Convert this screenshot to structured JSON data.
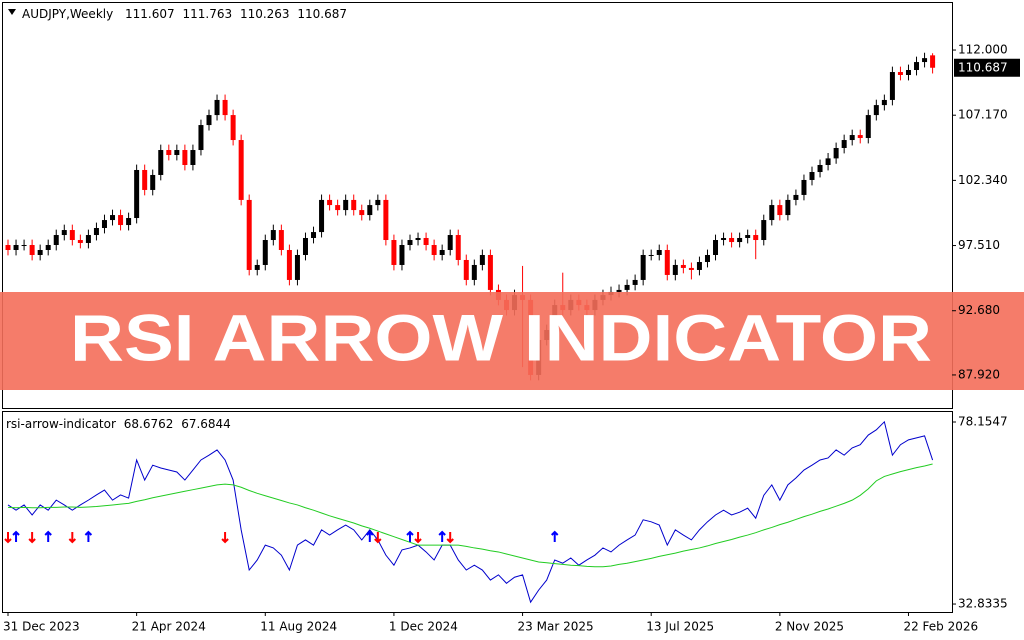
{
  "chart_data": [
    {
      "type": "candlestick",
      "title": "AUDJPY,Weekly",
      "categories": [
        "31 Dec 2023",
        null,
        null,
        null,
        null,
        null,
        null,
        null,
        null,
        null,
        null,
        null,
        null,
        null,
        null,
        null,
        "21 Apr 2024",
        null,
        null,
        null,
        null,
        null,
        null,
        null,
        null,
        null,
        null,
        null,
        null,
        null,
        null,
        null,
        "11 Aug 2024",
        null,
        null,
        null,
        null,
        null,
        null,
        null,
        null,
        null,
        null,
        null,
        null,
        null,
        null,
        null,
        "1 Dec 2024",
        null,
        null,
        null,
        null,
        null,
        null,
        null,
        null,
        null,
        null,
        null,
        null,
        null,
        null,
        null,
        "23 Mar 2025",
        null,
        null,
        null,
        null,
        null,
        null,
        null,
        null,
        null,
        null,
        null,
        null,
        null,
        null,
        null,
        "13 Jul 2025",
        null,
        null,
        null,
        null,
        null,
        null,
        null,
        null,
        null,
        null,
        null,
        null,
        null,
        null,
        null,
        "2 Nov 2025",
        null,
        null,
        null,
        null,
        null,
        null,
        null,
        null,
        null,
        null,
        null,
        null,
        null,
        null,
        null,
        "22 Feb 2026",
        null,
        null,
        null
      ],
      "open": [
        97.55,
        97.18,
        97.55,
        97.55,
        96.81,
        97.18,
        97.55,
        98.29,
        98.66,
        97.92,
        97.7,
        98.29,
        98.81,
        99.4,
        99.77,
        99.03,
        99.55,
        103.11,
        101.63,
        102.74,
        104.59,
        104.22,
        104.59,
        103.48,
        104.59,
        106.44,
        107.18,
        108.3,
        107.18,
        105.33,
        100.89,
        95.7,
        96.07,
        97.92,
        98.66,
        97.18,
        94.96,
        96.81,
        98.07,
        98.51,
        100.89,
        100.51,
        100.14,
        100.89,
        100.14,
        99.77,
        100.51,
        100.89,
        97.92,
        96.07,
        97.55,
        97.92,
        98.07,
        97.55,
        96.81,
        97.18,
        98.29,
        96.44,
        94.96,
        96.07,
        96.81,
        94.22,
        93.48,
        92.73,
        93.84,
        93.48,
        87.92,
        90.51,
        91.25,
        93.1,
        92.73,
        93.48,
        93.1,
        92.73,
        93.48,
        93.84,
        94.07,
        94.22,
        94.59,
        94.96,
        96.81,
        96.81,
        97.18,
        95.33,
        96.07,
        95.85,
        95.7,
        96.29,
        96.81,
        97.92,
        98.07,
        97.77,
        98.07,
        98.29,
        97.92,
        99.4,
        100.51,
        99.77,
        100.89,
        101.26,
        102.37,
        102.96,
        103.48,
        103.97,
        104.74,
        105.33,
        105.7,
        105.48,
        107.18,
        107.92,
        108.3,
        110.37,
        110.15,
        110.52,
        111.11,
        111.607
      ],
      "high": [
        97.95,
        97.95,
        97.95,
        97.95,
        97.58,
        97.95,
        98.69,
        99.06,
        99.06,
        98.32,
        98.69,
        99.21,
        99.8,
        100.17,
        100.17,
        99.95,
        103.51,
        103.51,
        103.14,
        104.99,
        104.99,
        104.99,
        104.99,
        104.99,
        106.84,
        107.58,
        108.7,
        108.7,
        107.58,
        105.73,
        101.29,
        96.47,
        98.32,
        99.06,
        99.06,
        97.58,
        97.21,
        98.47,
        98.91,
        101.29,
        101.29,
        100.91,
        101.29,
        101.29,
        100.54,
        100.91,
        101.29,
        101.29,
        98.32,
        97.95,
        98.32,
        98.47,
        98.47,
        97.95,
        97.58,
        98.69,
        98.69,
        96.84,
        96.47,
        97.21,
        97.21,
        94.62,
        93.88,
        94.24,
        96.0,
        93.88,
        90.91,
        91.65,
        93.5,
        95.5,
        93.88,
        93.88,
        93.5,
        93.88,
        94.24,
        94.47,
        94.62,
        94.99,
        95.36,
        97.21,
        97.21,
        97.58,
        97.58,
        96.47,
        96.47,
        96.25,
        96.69,
        97.21,
        98.32,
        98.47,
        98.47,
        98.47,
        98.69,
        98.69,
        99.8,
        100.91,
        100.91,
        101.29,
        101.66,
        102.77,
        103.36,
        103.88,
        104.37,
        105.14,
        105.73,
        106.1,
        106.1,
        107.58,
        108.32,
        108.7,
        110.77,
        110.77,
        110.92,
        111.51,
        111.8,
        111.763
      ],
      "low": [
        96.78,
        96.78,
        97.15,
        96.41,
        96.41,
        96.78,
        97.15,
        97.89,
        97.52,
        97.3,
        97.3,
        97.89,
        98.41,
        99.0,
        98.63,
        98.63,
        99.15,
        101.23,
        101.23,
        102.34,
        103.82,
        103.82,
        103.08,
        103.08,
        104.19,
        106.04,
        106.78,
        106.78,
        104.93,
        100.49,
        95.3,
        95.3,
        95.67,
        97.52,
        96.78,
        94.56,
        94.56,
        96.41,
        97.67,
        98.11,
        100.11,
        99.74,
        99.74,
        99.74,
        99.37,
        99.37,
        100.11,
        97.52,
        95.67,
        95.67,
        97.15,
        97.52,
        97.15,
        96.41,
        96.41,
        96.78,
        96.04,
        94.56,
        94.56,
        95.67,
        93.82,
        93.08,
        92.33,
        92.33,
        88.5,
        87.52,
        87.52,
        90.11,
        90.85,
        92.33,
        92.33,
        92.7,
        92.33,
        92.33,
        93.08,
        93.44,
        93.67,
        93.82,
        94.19,
        94.56,
        96.41,
        96.41,
        94.93,
        94.93,
        95.45,
        95.0,
        95.3,
        95.89,
        96.41,
        97.52,
        97.37,
        97.37,
        97.67,
        96.5,
        97.52,
        99.0,
        99.37,
        99.37,
        100.49,
        100.86,
        101.97,
        102.56,
        103.08,
        103.57,
        104.34,
        104.93,
        105.08,
        105.08,
        106.78,
        107.52,
        107.9,
        109.75,
        109.75,
        110.12,
        110.71,
        110.263
      ],
      "close": [
        97.18,
        97.55,
        97.55,
        96.81,
        97.18,
        97.55,
        98.29,
        98.66,
        97.92,
        97.7,
        98.29,
        98.81,
        99.4,
        99.77,
        99.03,
        99.55,
        103.11,
        101.63,
        102.74,
        104.59,
        104.22,
        104.59,
        103.48,
        104.59,
        106.44,
        107.18,
        108.3,
        107.18,
        105.33,
        100.89,
        95.7,
        96.07,
        97.92,
        98.66,
        97.18,
        94.96,
        96.81,
        98.07,
        98.51,
        100.89,
        100.51,
        100.14,
        100.89,
        100.14,
        99.77,
        100.51,
        100.89,
        97.92,
        96.07,
        97.55,
        97.92,
        98.07,
        97.55,
        96.81,
        97.18,
        98.29,
        96.44,
        94.96,
        96.07,
        96.81,
        94.22,
        93.48,
        92.73,
        93.84,
        93.48,
        87.92,
        90.51,
        91.25,
        93.1,
        92.73,
        93.48,
        93.1,
        92.73,
        93.48,
        93.84,
        94.07,
        94.22,
        94.59,
        94.96,
        96.81,
        96.81,
        97.18,
        95.33,
        96.07,
        95.85,
        95.7,
        96.29,
        96.81,
        97.92,
        98.07,
        97.77,
        98.07,
        98.29,
        97.92,
        99.4,
        100.51,
        99.77,
        100.89,
        101.26,
        102.37,
        102.96,
        103.48,
        103.97,
        104.74,
        105.33,
        105.7,
        105.48,
        107.18,
        107.92,
        108.3,
        110.37,
        110.15,
        110.52,
        111.11,
        111.4,
        110.687
      ],
      "up_color": "#000000",
      "down_color": "#ff0000",
      "ylim": [
        85.47,
        115.56
      ],
      "yticks": [
        {
          "value": 112,
          "label": "112.000"
        },
        {
          "value": 107.17,
          "label": "107.170"
        },
        {
          "value": 102.34,
          "label": "102.340"
        },
        {
          "value": 97.51,
          "label": "97.510"
        },
        {
          "value": 92.68,
          "label": "92.680"
        },
        {
          "value": 87.92,
          "label": "87.920"
        }
      ]
    },
    {
      "type": "line",
      "title": "rsi-arrow-indicator",
      "series": [
        {
          "color": "#0000cc",
          "values": [
            57.5,
            56.2,
            57.5,
            55.0,
            57.5,
            56.2,
            58.7,
            57.5,
            56.2,
            57.5,
            58.7,
            60.0,
            61.2,
            58.7,
            60.0,
            59.2,
            68.7,
            63.7,
            67.4,
            66.7,
            66.2,
            65.7,
            63.7,
            66.2,
            68.7,
            69.9,
            71.2,
            68.7,
            63.7,
            51.3,
            41.3,
            43.8,
            47.5,
            46.8,
            45.0,
            41.3,
            47.5,
            48.8,
            47.5,
            51.3,
            50.0,
            51.3,
            52.5,
            51.3,
            48.8,
            51.3,
            48.8,
            45.0,
            42.5,
            46.3,
            46.8,
            47.5,
            45.8,
            43.8,
            47.5,
            47.5,
            43.8,
            41.3,
            42.5,
            41.3,
            38.8,
            40.1,
            38.0,
            39.5,
            40.1,
            33.3,
            36.3,
            38.8,
            43.8,
            43.0,
            44.3,
            42.5,
            43.8,
            45.0,
            46.8,
            45.8,
            47.5,
            48.8,
            50.0,
            53.8,
            53.3,
            52.5,
            47.5,
            51.3,
            50.0,
            48.8,
            51.3,
            53.3,
            55.0,
            56.2,
            55.0,
            55.7,
            56.7,
            54.2,
            59.9,
            62.5,
            58.7,
            62.5,
            64.2,
            66.2,
            67.4,
            68.7,
            69.2,
            71.2,
            69.9,
            71.7,
            72.5,
            74.9,
            76.2,
            78.2,
            69.9,
            72.5,
            73.7,
            74.2,
            74.7,
            68.6762
          ]
        },
        {
          "color": "#22cc22",
          "values": [
            56.9,
            56.8,
            56.9,
            56.8,
            56.8,
            56.9,
            56.9,
            57.0,
            57.0,
            56.9,
            57.0,
            57.1,
            57.3,
            57.5,
            57.7,
            57.9,
            58.4,
            58.8,
            59.3,
            59.7,
            60.1,
            60.5,
            60.9,
            61.3,
            61.7,
            62.1,
            62.5,
            62.7,
            62.5,
            61.9,
            61.1,
            60.4,
            59.8,
            59.2,
            58.6,
            58.0,
            57.5,
            56.8,
            56.2,
            55.5,
            54.8,
            54.2,
            53.6,
            53.0,
            52.3,
            51.7,
            51.0,
            50.3,
            49.6,
            48.9,
            48.2,
            47.5,
            47.5,
            47.5,
            47.5,
            47.5,
            47.5,
            47.2,
            46.8,
            46.5,
            46.1,
            45.8,
            45.3,
            44.8,
            44.3,
            43.8,
            43.3,
            43.1,
            42.9,
            42.7,
            42.5,
            42.4,
            42.2,
            42.1,
            42.1,
            42.3,
            42.7,
            43.0,
            43.4,
            43.8,
            44.2,
            44.7,
            45.1,
            45.5,
            46.0,
            46.4,
            46.8,
            47.3,
            47.9,
            48.4,
            48.9,
            49.5,
            50.0,
            50.6,
            51.3,
            51.9,
            52.6,
            53.2,
            53.9,
            54.6,
            55.2,
            55.9,
            56.5,
            57.2,
            57.9,
            58.7,
            59.9,
            61.5,
            63.5,
            64.6,
            65.2,
            65.8,
            66.3,
            66.8,
            67.2,
            67.6844
          ]
        }
      ],
      "up_arrows": {
        "color": "#0000ff",
        "x": [
          1,
          5,
          10,
          45,
          50,
          54,
          68
        ]
      },
      "down_arrows": {
        "color": "#ff0000",
        "x": [
          0,
          3,
          8,
          27,
          46,
          51,
          55
        ]
      },
      "ylim": [
        30.85,
        80.89
      ],
      "yticks": [
        78.1547,
        32.8335
      ]
    }
  ],
  "banner": "RSI ARROW INDICATOR"
}
